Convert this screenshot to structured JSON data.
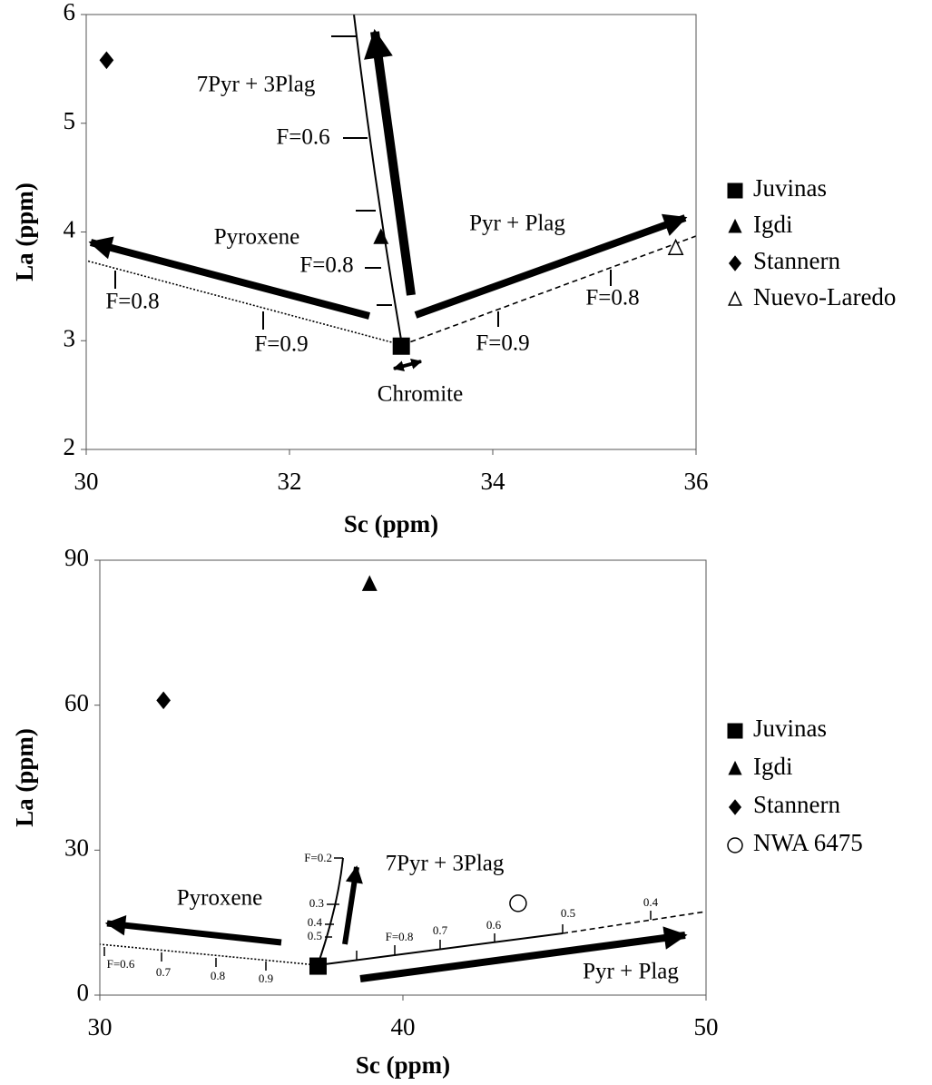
{
  "chart_data": [
    {
      "type": "scatter",
      "xlabel": "Sc (ppm)",
      "ylabel": "La (ppm)",
      "xlim": [
        30,
        36
      ],
      "ylim": [
        2,
        6
      ],
      "xticks": [
        30,
        32,
        34,
        36
      ],
      "yticks": [
        2,
        3,
        4,
        5,
        6
      ],
      "series": [
        {
          "name": "Juvinas",
          "color": "#000000",
          "marker": "square",
          "x": [
            33.1
          ],
          "y": [
            2.95
          ]
        },
        {
          "name": "Igdi",
          "color": "#000000",
          "marker": "triangle",
          "x": [
            32.9
          ],
          "y": [
            3.95
          ]
        },
        {
          "name": "Stannern",
          "color": "#000000",
          "marker": "diamond",
          "x": [
            30.2
          ],
          "y": [
            5.58
          ]
        },
        {
          "name": "Nuevo-Laredo",
          "color": "#000000",
          "marker": "open-triangle",
          "x": [
            35.8
          ],
          "y": [
            3.85
          ]
        }
      ],
      "annotations": [
        "7Pyr + 3Plag",
        "F=0.6",
        "F=0.8",
        "Pyroxene",
        "F=0.8",
        "F=0.9",
        "Pyr + Plag",
        "F=0.9",
        "F=0.8",
        "Chromite"
      ]
    },
    {
      "type": "scatter",
      "xlabel": "Sc (ppm)",
      "ylabel": "La (ppm)",
      "xlim": [
        30,
        50
      ],
      "ylim": [
        0,
        90
      ],
      "xticks": [
        30,
        40,
        50
      ],
      "yticks": [
        0,
        30,
        60,
        90
      ],
      "series": [
        {
          "name": "Juvinas",
          "color": "#000000",
          "marker": "square",
          "x": [
            37.2
          ],
          "y": [
            6
          ]
        },
        {
          "name": "Igdi",
          "color": "#000000",
          "marker": "triangle",
          "x": [
            38.9
          ],
          "y": [
            85
          ]
        },
        {
          "name": "Stannern",
          "color": "#000000",
          "marker": "diamond",
          "x": [
            32.1
          ],
          "y": [
            61
          ]
        },
        {
          "name": "NWA 6475",
          "color": "#000000",
          "marker": "open-circle",
          "x": [
            43.8
          ],
          "y": [
            19
          ]
        }
      ],
      "annotations": [
        "Pyroxene",
        "7Pyr + 3Plag",
        "Pyr + Plag",
        "F=0.2",
        "0.3",
        "0.4",
        "0.5",
        "F=0.6",
        "0.7",
        "0.8",
        "0.9",
        "F=0.8",
        "0.7",
        "0.6",
        "0.5",
        "0.4"
      ]
    }
  ]
}
